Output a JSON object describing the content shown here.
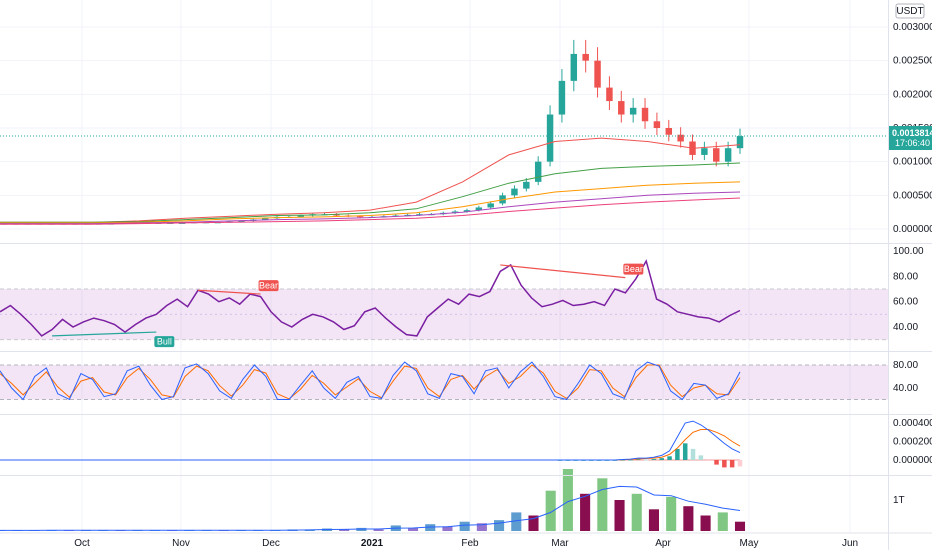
{
  "quote_currency": "USDT",
  "price_label": {
    "value": "0.0013814",
    "countdown": "17:06:40"
  },
  "x_labels": [
    "Oct",
    "Nov",
    "Dec",
    "2021",
    "Feb",
    "Mar",
    "Apr",
    "May",
    "Jun"
  ],
  "colors": {
    "up": "#26a69a",
    "down": "#ef5350",
    "dark": "#880e4f",
    "rsi": "#7b1fa2",
    "band": "rgba(156,39,176,0.12)",
    "macd": "#2962ff",
    "signal": "#ff6d00",
    "grid": "#f0f3fa"
  },
  "chart_data": [
    {
      "type": "candlestick",
      "pane": "price",
      "y_ticks": [
        "0.0030000",
        "0.0025000",
        "0.0020000",
        "0.0015000",
        "0.0010000",
        "0.0005000",
        "0.0000000"
      ],
      "ylim": [
        0,
        0.0031
      ],
      "last_price": 0.0013814,
      "close": [
        8e-05,
        8e-05,
        8e-05,
        8e-05,
        8e-05,
        8e-05,
        8e-05,
        8e-05,
        8e-05,
        8e-05,
        9e-05,
        9e-05,
        9e-05,
        9e-05,
        9e-05,
        9e-05,
        0.0001,
        0.0001,
        0.0001,
        0.00011,
        0.00012,
        0.00014,
        0.00016,
        0.00018,
        0.00018,
        0.0002,
        0.00022,
        0.00022,
        0.0002,
        0.00019,
        0.00018,
        0.00018,
        0.00019,
        0.0002,
        0.00021,
        0.00022,
        0.00022,
        0.00024,
        0.00026,
        0.00028,
        0.00032,
        0.00038,
        0.0005,
        0.0006,
        0.0007,
        0.001,
        0.0017,
        0.0022,
        0.0026,
        0.0025,
        0.0021,
        0.0019,
        0.0017,
        0.0018,
        0.0016,
        0.0015,
        0.0014,
        0.0013,
        0.0011,
        0.0012,
        0.001,
        0.0012,
        0.00138
      ],
      "ema_fast": [
        0.0001,
        0.0001,
        0.0001,
        0.00012,
        0.00016,
        0.00019,
        0.00022,
        0.00024,
        0.00028,
        0.0004,
        0.0007,
        0.0011,
        0.0013,
        0.00135,
        0.0013,
        0.0012,
        0.00125
      ],
      "ema_mid": [
        0.0001,
        0.0001,
        0.0001,
        0.00011,
        0.00014,
        0.00017,
        0.0002,
        0.00021,
        0.00024,
        0.0003,
        0.00048,
        0.00068,
        0.00082,
        0.0009,
        0.00093,
        0.00095,
        0.00098
      ],
      "ema_slow": [
        9e-05,
        9e-05,
        9e-05,
        0.0001,
        0.00012,
        0.00015,
        0.00017,
        0.00018,
        0.0002,
        0.00024,
        0.00033,
        0.00045,
        0.00055,
        0.0006,
        0.00065,
        0.00068,
        0.0007
      ],
      "sma_long": [
        8e-05,
        8e-05,
        8e-05,
        9e-05,
        0.0001,
        0.00012,
        0.00014,
        0.00015,
        0.00017,
        0.0002,
        0.00025,
        0.00033,
        0.0004,
        0.00045,
        0.0005,
        0.00053,
        0.00055
      ],
      "sma_xlong": [
        7e-05,
        7e-05,
        7e-05,
        8e-05,
        9e-05,
        0.0001,
        0.00011,
        0.00012,
        0.00014,
        0.00016,
        0.0002,
        0.00026,
        0.00031,
        0.00036,
        0.0004,
        0.00043,
        0.00046
      ]
    },
    {
      "type": "line",
      "pane": "rsi",
      "y_ticks": [
        "100.00",
        "80.00",
        "60.00",
        "40.00"
      ],
      "ylim": [
        27,
        103
      ],
      "band": [
        30,
        70
      ],
      "values": [
        52,
        57,
        50,
        42,
        33,
        38,
        46,
        40,
        44,
        47,
        45,
        42,
        36,
        42,
        47,
        50,
        57,
        62,
        56,
        69,
        66,
        60,
        63,
        58,
        66,
        64,
        52,
        44,
        40,
        46,
        50,
        48,
        44,
        38,
        41,
        52,
        55,
        47,
        40,
        34,
        33,
        48,
        55,
        62,
        58,
        66,
        64,
        68,
        84,
        89,
        73,
        63,
        56,
        58,
        61,
        57,
        58,
        60,
        57,
        70,
        67,
        78,
        92,
        62,
        58,
        52,
        50,
        48,
        47,
        44,
        49,
        53
      ],
      "divergences": [
        {
          "label": "Bull",
          "from": [
            5,
            33
          ],
          "to": [
            15,
            36
          ]
        },
        {
          "label": "Bear",
          "from": [
            19,
            69
          ],
          "to": [
            25,
            66
          ]
        },
        {
          "label": "Bear",
          "from": [
            48,
            89
          ],
          "to": [
            60,
            79
          ]
        }
      ]
    },
    {
      "type": "line",
      "pane": "stoch",
      "y_ticks": [
        "80.00",
        "40.00"
      ],
      "ylim": [
        10,
        95
      ],
      "band": [
        20,
        80
      ],
      "k": [
        70,
        40,
        20,
        60,
        75,
        30,
        20,
        65,
        55,
        25,
        30,
        70,
        78,
        45,
        20,
        25,
        75,
        82,
        65,
        35,
        22,
        55,
        80,
        60,
        20,
        20,
        45,
        70,
        40,
        22,
        50,
        60,
        25,
        22,
        62,
        85,
        70,
        30,
        22,
        65,
        60,
        30,
        70,
        75,
        40,
        68,
        85,
        60,
        25,
        20,
        48,
        80,
        65,
        30,
        22,
        70,
        85,
        78,
        35,
        20,
        48,
        45,
        22,
        30,
        68
      ],
      "d": [
        65,
        48,
        28,
        48,
        68,
        42,
        24,
        52,
        58,
        33,
        28,
        58,
        74,
        55,
        28,
        24,
        60,
        78,
        70,
        44,
        26,
        45,
        72,
        66,
        30,
        21,
        38,
        62,
        48,
        28,
        42,
        56,
        34,
        23,
        52,
        78,
        74,
        40,
        25,
        55,
        62,
        38,
        60,
        72,
        48,
        60,
        80,
        66,
        34,
        22,
        40,
        72,
        70,
        40,
        25,
        58,
        80,
        80,
        45,
        25,
        40,
        45,
        30,
        28,
        58
      ]
    },
    {
      "type": "histogram",
      "pane": "macd",
      "y_ticks": [
        "0.0004000",
        "0.0002000",
        "0.0000000"
      ],
      "ylim": [
        -8e-05,
        0.00046
      ],
      "macd": [
        0,
        0,
        0,
        0,
        0,
        0,
        0,
        0,
        5e-06,
        1e-05,
        2e-05,
        2e-05,
        3e-05,
        5e-05,
        0.0001,
        0.00025,
        0.0004,
        0.00042,
        0.00038,
        0.00032,
        0.00025,
        0.00018,
        0.00012,
        8e-05
      ],
      "signal": [
        0,
        0,
        0,
        0,
        0,
        0,
        0,
        0,
        3e-06,
        6e-06,
        1.2e-05,
        1.6e-05,
        2e-05,
        3e-05,
        6e-05,
        0.00013,
        0.00022,
        0.0003,
        0.00033,
        0.00033,
        0.0003,
        0.00026,
        0.0002,
        0.00015
      ],
      "hist": [
        0,
        0,
        0,
        0,
        0,
        0,
        0,
        0,
        2e-06,
        4e-06,
        8e-06,
        4e-06,
        1e-05,
        2e-05,
        4e-05,
        0.00012,
        0.00018,
        0.00012,
        5e-05,
        -1e-05,
        -5e-05,
        -8e-05,
        -8e-05,
        -7e-05
      ]
    },
    {
      "type": "bar",
      "pane": "volume",
      "y_ticks": [
        "1T"
      ],
      "ylim": [
        0,
        2.2
      ],
      "values": [
        0.02,
        0.02,
        0.02,
        0.03,
        0.02,
        0.02,
        0.03,
        0.02,
        0.02,
        0.03,
        0.02,
        0.02,
        0.03,
        0.02,
        0.02,
        0.03,
        0.03,
        0.05,
        0.05,
        0.08,
        0.05,
        0.1,
        0.05,
        0.18,
        0.1,
        0.22,
        0.15,
        0.3,
        0.25,
        0.35,
        0.6,
        0.5,
        1.3,
        2.0,
        1.2,
        1.7,
        1.0,
        1.2,
        0.7,
        1.1,
        0.8,
        0.5,
        0.6,
        0.3
      ]
    }
  ]
}
